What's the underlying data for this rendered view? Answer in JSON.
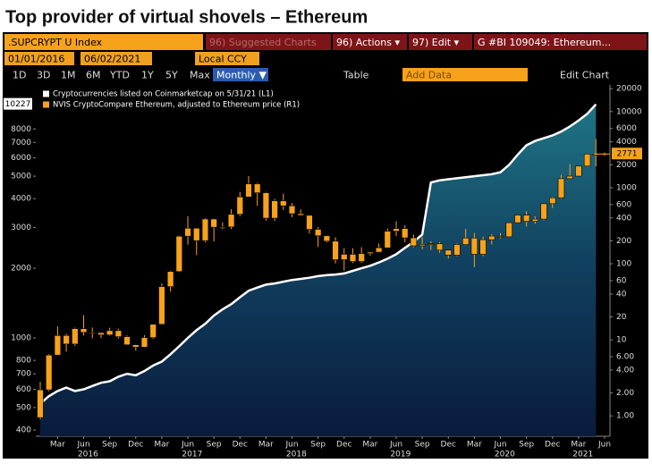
{
  "header": {
    "title": "Top provider of virtual shovels – Ethereum"
  },
  "toolbar": {
    "security": ".SUPCRYPT U Index",
    "buttons": [
      "96) Suggested Charts",
      "96) Actions ▾",
      "97) Edit ▾",
      "G #BI 109049: Ethereum..."
    ],
    "start_date": "01/01/2016",
    "end_date": "06/02/2021",
    "currency": "Local CCY",
    "periods": [
      "1D",
      "3D",
      "1M",
      "6M",
      "YTD",
      "1Y",
      "5Y",
      "Max"
    ],
    "frequency": "Monthly ▼",
    "table": "Table",
    "add_data": "Add Data",
    "edit_chart": "Edit Chart"
  },
  "chart_data": {
    "type": "combo",
    "log_scale": true,
    "x": [
      "2016-01",
      "2016-02",
      "2016-03",
      "2016-04",
      "2016-05",
      "2016-06",
      "2016-07",
      "2016-08",
      "2016-09",
      "2016-10",
      "2016-11",
      "2016-12",
      "2017-01",
      "2017-02",
      "2017-03",
      "2017-04",
      "2017-05",
      "2017-06",
      "2017-07",
      "2017-08",
      "2017-09",
      "2017-10",
      "2017-11",
      "2017-12",
      "2018-01",
      "2018-02",
      "2018-03",
      "2018-04",
      "2018-05",
      "2018-06",
      "2018-07",
      "2018-08",
      "2018-09",
      "2018-10",
      "2018-11",
      "2018-12",
      "2019-01",
      "2019-02",
      "2019-03",
      "2019-04",
      "2019-05",
      "2019-06",
      "2019-07",
      "2019-08",
      "2019-09",
      "2019-10",
      "2019-11",
      "2019-12",
      "2020-01",
      "2020-02",
      "2020-03",
      "2020-04",
      "2020-05",
      "2020-06",
      "2020-07",
      "2020-08",
      "2020-09",
      "2020-10",
      "2020-11",
      "2020-12",
      "2021-01",
      "2021-02",
      "2021-03",
      "2021-04",
      "2021-05",
      "2021-06"
    ],
    "xticks": [
      {
        "value": "2016-03",
        "label": "Mar"
      },
      {
        "value": "2016-06",
        "label": "Jun"
      },
      {
        "value": "2016-09",
        "label": "Sep"
      },
      {
        "value": "2016-12",
        "label": "Dec"
      },
      {
        "value": "2017-03",
        "label": "Mar"
      },
      {
        "value": "2017-06",
        "label": "Jun"
      },
      {
        "value": "2017-09",
        "label": "Sep"
      },
      {
        "value": "2017-12",
        "label": "Dec"
      },
      {
        "value": "2018-03",
        "label": "Mar"
      },
      {
        "value": "2018-06",
        "label": "Jun"
      },
      {
        "value": "2018-09",
        "label": "Sep"
      },
      {
        "value": "2018-12",
        "label": "Dec"
      },
      {
        "value": "2019-03",
        "label": "Mar"
      },
      {
        "value": "2019-06",
        "label": "Jun"
      },
      {
        "value": "2019-09",
        "label": "Sep"
      },
      {
        "value": "2019-12",
        "label": "Dec"
      },
      {
        "value": "2020-03",
        "label": "Mar"
      },
      {
        "value": "2020-06",
        "label": "Jun"
      },
      {
        "value": "2020-09",
        "label": "Sep"
      },
      {
        "value": "2020-12",
        "label": "Dec"
      },
      {
        "value": "2021-03",
        "label": "Mar"
      },
      {
        "value": "2021-06",
        "label": "Jun"
      }
    ],
    "year_labels": [
      "2016",
      "2017",
      "2018",
      "2019",
      "2020",
      "2021"
    ],
    "ylim": [
      376,
      12400
    ],
    "yticks": [
      400,
      500,
      600,
      700,
      800,
      1000,
      2000,
      3000,
      4000,
      5000,
      6000,
      7000,
      8000
    ],
    "y2lim": [
      0.54,
      22400
    ],
    "y2ticks": [
      {
        "value": 1,
        "label": "1.00"
      },
      {
        "value": 2,
        "label": "2.00"
      },
      {
        "value": 4,
        "label": "4.00"
      },
      {
        "value": 6,
        "label": "6.00"
      },
      10,
      20,
      40,
      60,
      100,
      200,
      400,
      600,
      1000,
      2000,
      4000,
      6000,
      10000,
      20000
    ],
    "series": [
      {
        "name": "Cryptocurrencies listed on Coinmarketcap on 5/31/21 (L1)",
        "type": "area",
        "axis": "y",
        "color": "#ffffff",
        "values": [
          520,
          560,
          590,
          610,
          590,
          600,
          620,
          640,
          650,
          680,
          700,
          690,
          720,
          760,
          790,
          850,
          920,
          1000,
          1080,
          1150,
          1250,
          1330,
          1400,
          1500,
          1600,
          1650,
          1700,
          1720,
          1750,
          1780,
          1800,
          1820,
          1850,
          1870,
          1880,
          1900,
          1950,
          2000,
          2050,
          2120,
          2200,
          2300,
          2450,
          2600,
          2800,
          4700,
          4800,
          4850,
          4900,
          4950,
          5000,
          5050,
          5100,
          5200,
          5600,
          6200,
          6800,
          7100,
          7300,
          7500,
          7800,
          8200,
          8700,
          9300,
          10227,
          null
        ]
      },
      {
        "name": "NVIS CryptoCompare Ethereum, adjusted to Ethereum price (R1)",
        "type": "candlestick",
        "axis": "y2",
        "color": "#f7a21b",
        "open": [
          0.95,
          2.2,
          6.3,
          11.4,
          8.8,
          14,
          12.5,
          12.4,
          11.6,
          13.2,
          11,
          8.6,
          8.0,
          10.7,
          16,
          50,
          79,
          230,
          293,
          201,
          387,
          302,
          305,
          446,
          756,
          1119,
          855,
          397,
          670,
          577,
          455,
          433,
          283,
          233,
          198,
          113,
          133,
          107,
          136,
          142,
          162,
          268,
          290,
          219,
          172,
          180,
          183,
          151,
          130,
          179,
          218,
          133,
          207,
          231,
          226,
          346,
          435,
          360,
          386,
          615,
          737,
          1312,
          1417,
          1920,
          2770,
          2710
        ],
        "high": [
          2.8,
          6.5,
          15,
          12,
          14.5,
          21,
          14.5,
          12.6,
          14.4,
          14,
          11.4,
          8.7,
          11.5,
          16,
          55,
          81,
          235,
          420,
          295,
          400,
          394,
          350,
          520,
          880,
          1424,
          1160,
          880,
          710,
          835,
          626,
          515,
          436,
          304,
          237,
          223,
          160,
          160,
          165,
          143,
          185,
          290,
          362,
          320,
          240,
          223,
          198,
          193,
          153,
          184,
          288,
          253,
          227,
          245,
          253,
          349,
          445,
          488,
          420,
          622,
          755,
          1475,
          2040,
          1950,
          2790,
          4360,
          2890
        ],
        "low": [
          0.9,
          2.1,
          6.3,
          7,
          8.3,
          11.4,
          10.5,
          10.5,
          11.3,
          10.4,
          8.5,
          7.2,
          7.9,
          10.3,
          15.8,
          43,
          78,
          178,
          130,
          190,
          197,
          284,
          285,
          420,
          750,
          575,
          369,
          365,
          507,
          410,
          426,
          250,
          166,
          190,
          101,
          81,
          102,
          102,
          128,
          140,
          160,
          230,
          191,
          165,
          155,
          152,
          139,
          117,
          126,
          175,
          90,
          126,
          180,
          216,
          224,
          340,
          308,
          335,
          372,
          540,
          715,
          1290,
          1420,
          1880,
          1900,
          2600
        ],
        "close": [
          2.2,
          6.3,
          11.4,
          8.8,
          14,
          12.5,
          12.4,
          11.6,
          13.2,
          11,
          8.6,
          8.0,
          10.7,
          16,
          50,
          79,
          230,
          293,
          201,
          387,
          302,
          305,
          446,
          756,
          1119,
          855,
          397,
          670,
          577,
          455,
          433,
          283,
          233,
          198,
          113,
          133,
          107,
          136,
          142,
          162,
          268,
          290,
          219,
          172,
          180,
          183,
          151,
          130,
          179,
          218,
          133,
          207,
          231,
          226,
          346,
          435,
          360,
          386,
          615,
          737,
          1312,
          1417,
          1920,
          2770,
          2710,
          2771
        ]
      }
    ]
  }
}
